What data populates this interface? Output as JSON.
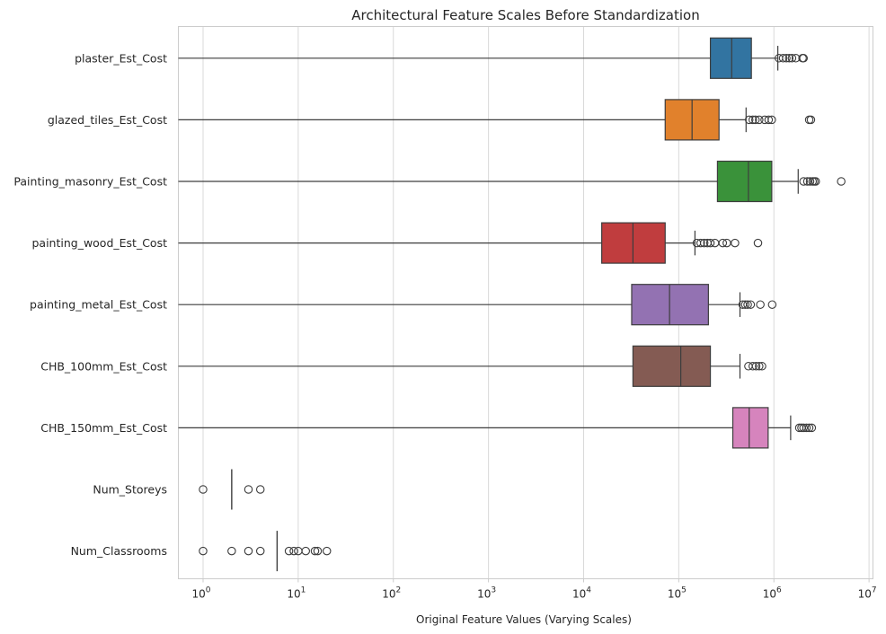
{
  "chart_data": {
    "type": "boxplot",
    "orientation": "horizontal",
    "title": "Architectural Feature Scales Before Standardization",
    "xlabel": "Original Feature Values (Varying Scales)",
    "ylabel": "",
    "xscale": "log",
    "xlim": [
      0.55,
      11000000
    ],
    "xticks": [
      1,
      10,
      100,
      1000,
      10000,
      100000,
      1000000,
      10000000
    ],
    "xtick_labels": [
      {
        "base": "10",
        "exp": "0"
      },
      {
        "base": "10",
        "exp": "1"
      },
      {
        "base": "10",
        "exp": "2"
      },
      {
        "base": "10",
        "exp": "3"
      },
      {
        "base": "10",
        "exp": "4"
      },
      {
        "base": "10",
        "exp": "5"
      },
      {
        "base": "10",
        "exp": "6"
      },
      {
        "base": "10",
        "exp": "7"
      }
    ],
    "grid": "vertical",
    "series": [
      {
        "name": "plaster_Est_Cost",
        "color": "#3274a1",
        "min": 0,
        "q1": 215000,
        "median": 360000,
        "q3": 580000,
        "whisker_high": 1100000,
        "outliers": [
          1130000,
          1250000,
          1350000,
          1450000,
          1550000,
          1700000,
          2000000,
          2050000
        ]
      },
      {
        "name": "glazed_tiles_Est_Cost",
        "color": "#e1812c",
        "min": 0,
        "q1": 72000,
        "median": 138000,
        "q3": 265000,
        "whisker_high": 510000,
        "outliers": [
          550000,
          600000,
          640000,
          700000,
          800000,
          880000,
          950000,
          2350000,
          2450000
        ]
      },
      {
        "name": "Painting_masonry_Est_Cost",
        "color": "#3a923a",
        "min": 0,
        "q1": 255000,
        "median": 540000,
        "q3": 950000,
        "whisker_high": 1800000,
        "outliers": [
          2050000,
          2250000,
          2400000,
          2550000,
          2650000,
          2750000,
          5100000
        ]
      },
      {
        "name": "painting_wood_Est_Cost",
        "color": "#c03d3e",
        "min": 0,
        "q1": 15500,
        "median": 33000,
        "q3": 72000,
        "whisker_high": 148000,
        "outliers": [
          155000,
          170000,
          185000,
          200000,
          215000,
          240000,
          290000,
          320000,
          390000,
          680000
        ]
      },
      {
        "name": "painting_metal_Est_Cost",
        "color": "#9372b2",
        "min": 0,
        "q1": 32000,
        "median": 80000,
        "q3": 205000,
        "whisker_high": 440000,
        "outliers": [
          470000,
          500000,
          530000,
          570000,
          720000,
          960000
        ]
      },
      {
        "name": "CHB_100mm_Est_Cost",
        "color": "#845b53",
        "min": 0,
        "q1": 33000,
        "median": 105000,
        "q3": 215000,
        "whisker_high": 440000,
        "outliers": [
          540000,
          600000,
          650000,
          700000,
          750000
        ]
      },
      {
        "name": "CHB_150mm_Est_Cost",
        "color": "#d684bd",
        "min": 0,
        "q1": 370000,
        "median": 550000,
        "q3": 870000,
        "whisker_high": 1500000,
        "outliers": [
          1850000,
          1950000,
          2050000,
          2200000,
          2350000,
          2500000
        ]
      },
      {
        "name": "Num_Storeys",
        "color": "#7f7f7f",
        "min": 2,
        "q1": 2,
        "median": 2,
        "q3": 2,
        "whisker_high": 2,
        "outliers": [
          1,
          3,
          4
        ]
      },
      {
        "name": "Num_Classrooms",
        "color": "#a9aa35",
        "min": 6,
        "q1": 6,
        "median": 6,
        "q3": 6,
        "whisker_high": 6,
        "outliers": [
          1,
          2,
          3,
          4,
          8,
          9,
          10,
          12,
          15,
          16,
          20
        ]
      }
    ]
  }
}
